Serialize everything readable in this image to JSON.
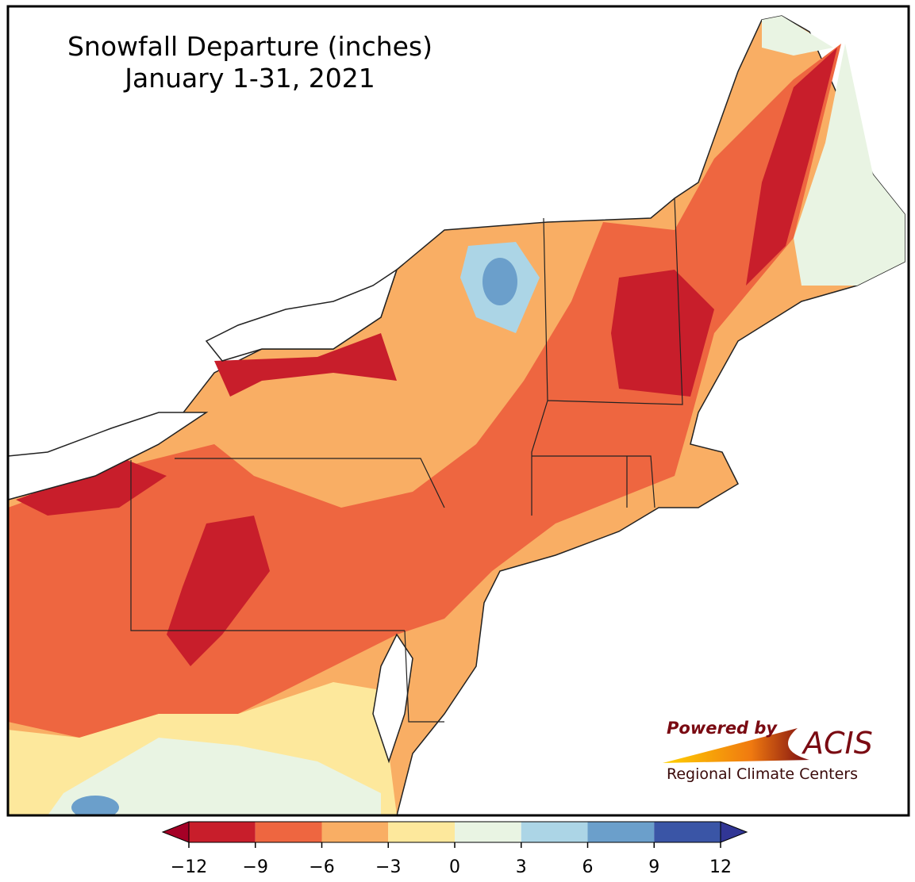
{
  "title": [
    "Snowfall Departure (inches)",
    "January 1-31, 2021"
  ],
  "colorbar": {
    "lim": [
      -12,
      12
    ],
    "ticks": [
      {
        "value": -12,
        "label": "−12"
      },
      {
        "value": -9,
        "label": "−9"
      },
      {
        "value": -6,
        "label": "−6"
      },
      {
        "value": -3,
        "label": "−3"
      },
      0,
      3,
      6,
      9,
      12
    ],
    "colors": [
      "#c81e2b",
      "#ee6640",
      "#f9ae64",
      "#fde89c",
      "#e9f4e3",
      "#acd5e6",
      "#6b9fcb",
      "#3a55a6"
    ],
    "extend_colors": [
      "#a50026",
      "#313695"
    ]
  },
  "logo": {
    "tagline": "Powered by",
    "brand": "ACIS",
    "footer": "Regional Climate Centers"
  }
}
